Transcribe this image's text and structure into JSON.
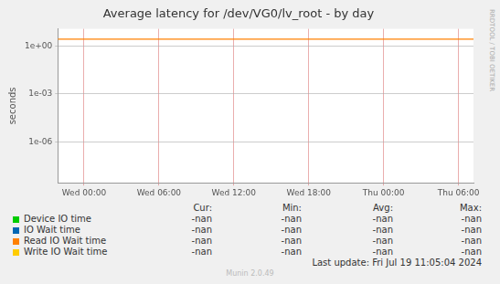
{
  "chart_data": {
    "type": "line",
    "title": "Average latency for /dev/VG0/lv_root - by day",
    "y_label": "seconds",
    "x": [
      -2.1,
      31.2
    ],
    "xlim": [
      -2.1,
      31.2
    ],
    "xticks": [
      {
        "value": 0,
        "label": "Wed 00:00"
      },
      {
        "value": 6,
        "label": "Wed 06:00"
      },
      {
        "value": 12,
        "label": "Wed 12:00"
      },
      {
        "value": 18,
        "label": "Wed 18:00"
      },
      {
        "value": 24,
        "label": "Thu 00:00"
      },
      {
        "value": 30,
        "label": "Thu 06:00"
      }
    ],
    "ylim": [
      2.7e-09,
      12
    ],
    "yticks": [
      {
        "value": 1e-06,
        "label": "1e-06"
      },
      {
        "value": 0.001,
        "label": "1e-03"
      },
      {
        "value": 1,
        "label": "1e+00"
      }
    ],
    "log": "y",
    "grid": true,
    "legend": "bottom",
    "stat_columns": [
      "Cur:",
      "Min:",
      "Avg:",
      "Max:"
    ],
    "series": [
      {
        "name": "Device IO time",
        "color": "#00cc00",
        "values": [
          null,
          null
        ],
        "stats": [
          "-nan",
          "-nan",
          "-nan",
          "-nan"
        ]
      },
      {
        "name": "IO Wait time",
        "color": "#0066b3",
        "values": [
          null,
          null
        ],
        "stats": [
          "-nan",
          "-nan",
          "-nan",
          "-nan"
        ]
      },
      {
        "name": "Read IO Wait time",
        "color": "#ff8000",
        "values": [
          2.7,
          2.7
        ],
        "stats": [
          "-nan",
          "-nan",
          "-nan",
          "-nan"
        ]
      },
      {
        "name": "Write IO Wait time",
        "color": "#ffcc00",
        "values": [
          null,
          null
        ],
        "stats": [
          "-nan",
          "-nan",
          "-nan",
          "-nan"
        ]
      }
    ],
    "last_update": "Last update: Fri Jul 19 11:05:04 2024",
    "version": "Munin 2.0.49",
    "watermark": "RRDTOOL / TOBI OETIKER"
  }
}
